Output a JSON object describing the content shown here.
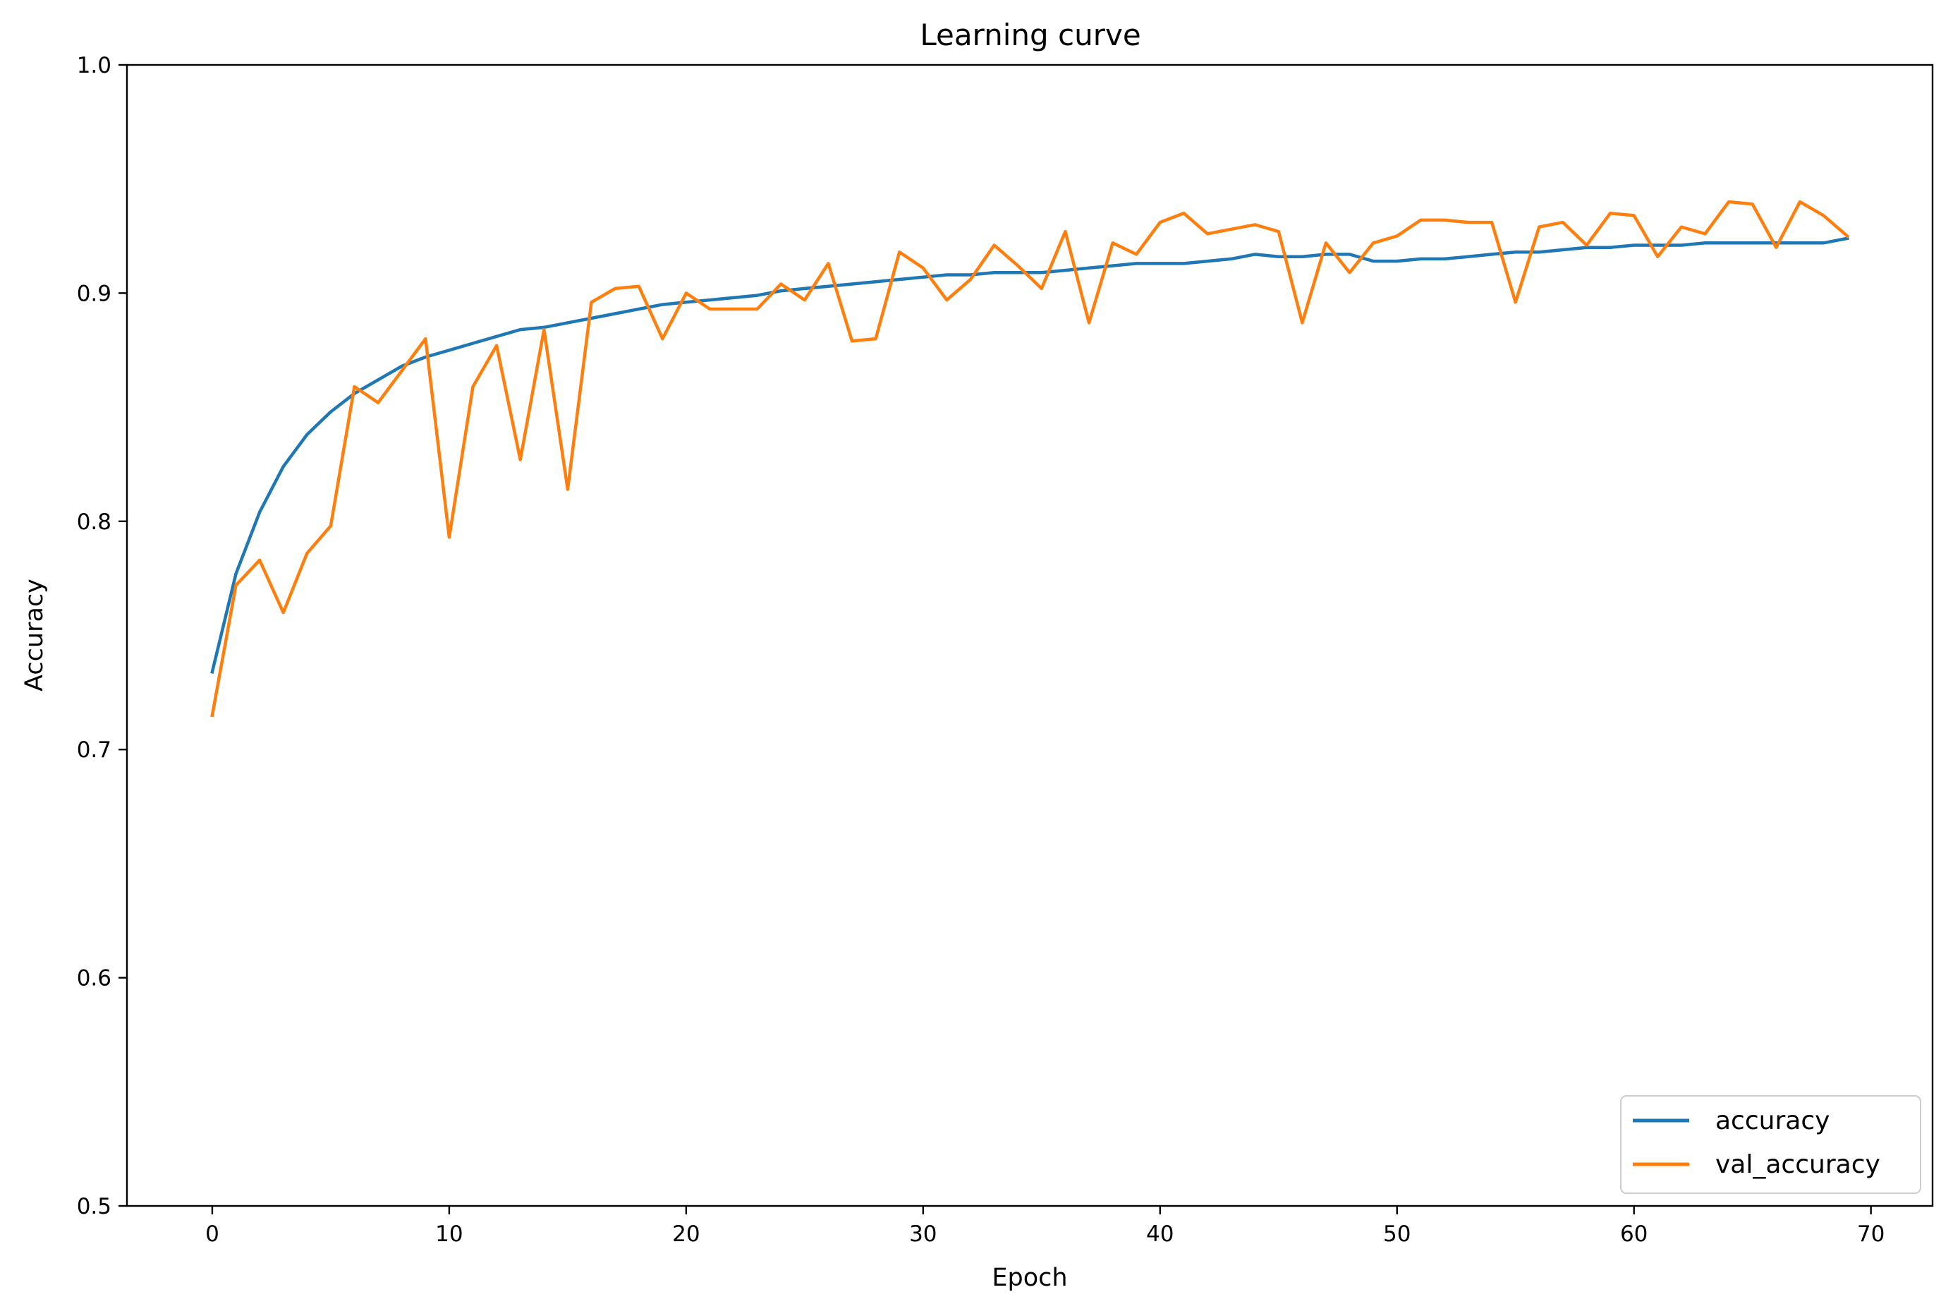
{
  "chart_data": {
    "type": "line",
    "title": "Learning curve",
    "xlabel": "Epoch",
    "ylabel": "Accuracy",
    "xlim": [
      -3.6,
      72.6
    ],
    "ylim": [
      0.5,
      1.0
    ],
    "xticks": [
      0,
      10,
      20,
      30,
      40,
      50,
      60,
      70
    ],
    "yticks": [
      0.5,
      0.6,
      0.7,
      0.8,
      0.9,
      1.0
    ],
    "xtick_labels": [
      "0",
      "10",
      "20",
      "30",
      "40",
      "50",
      "60",
      "70"
    ],
    "ytick_labels": [
      "0.5",
      "0.6",
      "0.7",
      "0.8",
      "0.9",
      "1.0"
    ],
    "grid": false,
    "legend_position": "lower right",
    "x": [
      0,
      1,
      2,
      3,
      4,
      5,
      6,
      7,
      8,
      9,
      10,
      11,
      12,
      13,
      14,
      15,
      16,
      17,
      18,
      19,
      20,
      21,
      22,
      23,
      24,
      25,
      26,
      27,
      28,
      29,
      30,
      31,
      32,
      33,
      34,
      35,
      36,
      37,
      38,
      39,
      40,
      41,
      42,
      43,
      44,
      45,
      46,
      47,
      48,
      49,
      50,
      51,
      52,
      53,
      54,
      55,
      56,
      57,
      58,
      59,
      60,
      61,
      62,
      63,
      64,
      65,
      66,
      67,
      68,
      69
    ],
    "series": [
      {
        "name": "accuracy",
        "color": "#1f77b4",
        "values": [
          0.734,
          0.777,
          0.804,
          0.824,
          0.838,
          0.848,
          0.856,
          0.862,
          0.868,
          0.872,
          0.875,
          0.878,
          0.881,
          0.884,
          0.885,
          0.887,
          0.889,
          0.891,
          0.893,
          0.895,
          0.896,
          0.897,
          0.898,
          0.899,
          0.901,
          0.902,
          0.903,
          0.904,
          0.905,
          0.906,
          0.907,
          0.908,
          0.908,
          0.909,
          0.909,
          0.909,
          0.91,
          0.911,
          0.912,
          0.913,
          0.913,
          0.913,
          0.914,
          0.915,
          0.917,
          0.916,
          0.916,
          0.917,
          0.917,
          0.914,
          0.914,
          0.915,
          0.915,
          0.916,
          0.917,
          0.918,
          0.918,
          0.919,
          0.92,
          0.92,
          0.921,
          0.921,
          0.921,
          0.922,
          0.922,
          0.922,
          0.922,
          0.922,
          0.922,
          0.924
        ]
      },
      {
        "name": "val_accuracy",
        "color": "#ff7f0e",
        "values": [
          0.715,
          0.772,
          0.783,
          0.76,
          0.786,
          0.798,
          0.859,
          0.852,
          0.866,
          0.88,
          0.793,
          0.859,
          0.877,
          0.827,
          0.884,
          0.814,
          0.896,
          0.902,
          0.903,
          0.88,
          0.9,
          0.893,
          0.893,
          0.893,
          0.904,
          0.897,
          0.913,
          0.879,
          0.88,
          0.918,
          0.911,
          0.897,
          0.906,
          0.921,
          0.912,
          0.902,
          0.927,
          0.887,
          0.922,
          0.917,
          0.931,
          0.935,
          0.926,
          0.928,
          0.93,
          0.927,
          0.887,
          0.922,
          0.909,
          0.922,
          0.925,
          0.932,
          0.932,
          0.931,
          0.931,
          0.896,
          0.929,
          0.931,
          0.921,
          0.935,
          0.934,
          0.916,
          0.929,
          0.926,
          0.94,
          0.939,
          0.92,
          0.94,
          0.934,
          0.925
        ]
      }
    ]
  }
}
